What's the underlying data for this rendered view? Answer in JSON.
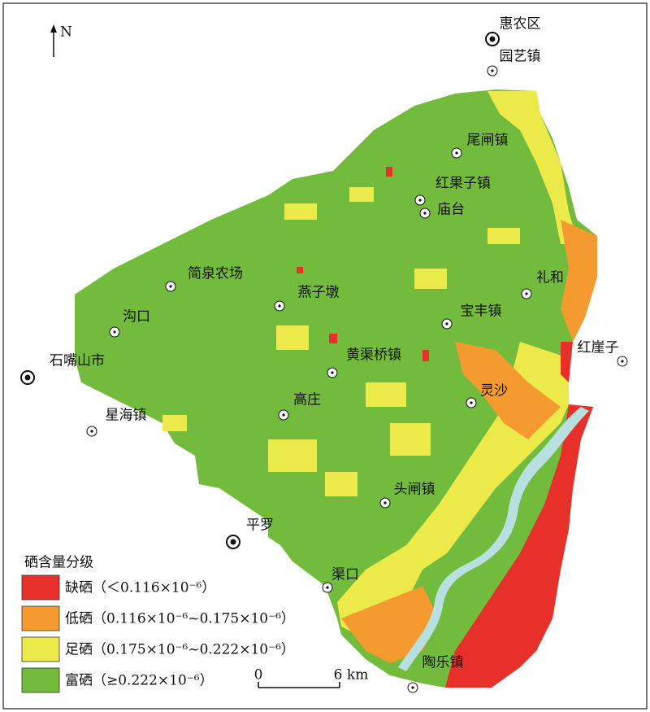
{
  "north": "N",
  "places": [
    {
      "name": "惠农区",
      "kind": "city"
    },
    {
      "name": "园艺镇",
      "kind": "town"
    },
    {
      "name": "尾闸镇",
      "kind": "town"
    },
    {
      "name": "红果子镇",
      "kind": "town"
    },
    {
      "name": "庙台",
      "kind": "town"
    },
    {
      "name": "简泉农场",
      "kind": "town"
    },
    {
      "name": "燕子墩",
      "kind": "town"
    },
    {
      "name": "礼和",
      "kind": "town"
    },
    {
      "name": "沟口",
      "kind": "town"
    },
    {
      "name": "宝丰镇",
      "kind": "town"
    },
    {
      "name": "石嘴山市",
      "kind": "city"
    },
    {
      "name": "红崖子",
      "kind": "town"
    },
    {
      "name": "黄渠桥镇",
      "kind": "town"
    },
    {
      "name": "灵沙",
      "kind": "town"
    },
    {
      "name": "高庄",
      "kind": "town"
    },
    {
      "name": "星海镇",
      "kind": "town"
    },
    {
      "name": "头闸镇",
      "kind": "town"
    },
    {
      "name": "平罗",
      "kind": "city"
    },
    {
      "name": "渠口",
      "kind": "town"
    },
    {
      "name": "陶乐镇",
      "kind": "town"
    }
  ],
  "legend": {
    "title": "硒含量分级",
    "items": [
      {
        "label": "缺硒（＜0.116×10⁻⁶）",
        "color": "#e8302a"
      },
      {
        "label": "低硒（0.116×10⁻⁶~0.175×10⁻⁶）",
        "color": "#f59a2e"
      },
      {
        "label": "足硒（0.175×10⁻⁶~0.222×10⁻⁶）",
        "color": "#ecea4a"
      },
      {
        "label": "富硒（≥0.222×10⁻⁶）",
        "color": "#72bb3c"
      }
    ]
  },
  "scale": {
    "labels": [
      "0",
      "6 km"
    ]
  }
}
